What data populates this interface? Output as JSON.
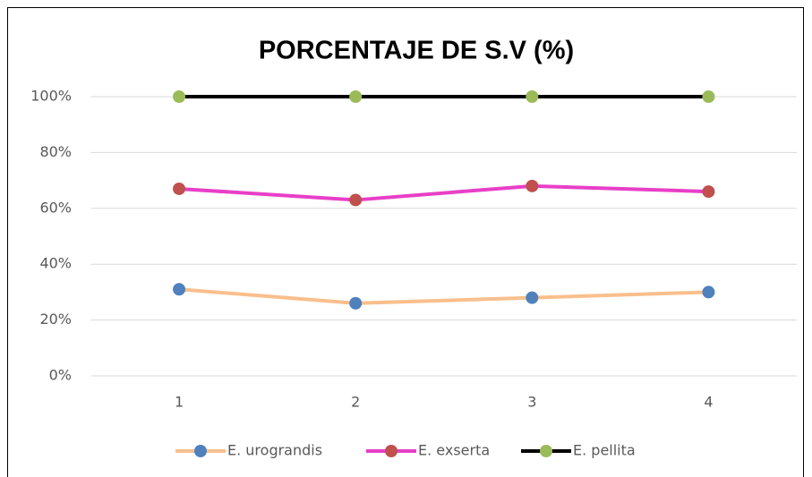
{
  "chart_data": {
    "type": "line",
    "title": "PORCENTAJE DE S.V (%)",
    "categories": [
      "1",
      "2",
      "3",
      "4"
    ],
    "series": [
      {
        "name": "E. urograndis",
        "color": "#f9bf8c",
        "marker_color": "#4f81bd",
        "values": [
          31,
          26,
          28,
          30
        ]
      },
      {
        "name": "E. exserta",
        "color": "#e83fc7",
        "marker_color": "#c0504d",
        "values": [
          67,
          63,
          68,
          66
        ]
      },
      {
        "name": "E. pellita",
        "color": "#000000",
        "marker_color": "#9bbb59",
        "values": [
          100,
          100,
          100,
          100
        ]
      }
    ],
    "ylim": [
      0,
      100
    ],
    "yticks": [
      {
        "value": 0,
        "label": "0%"
      },
      {
        "value": 20,
        "label": "20%"
      },
      {
        "value": 40,
        "label": "40%"
      },
      {
        "value": 60,
        "label": "60%"
      },
      {
        "value": 80,
        "label": "80%"
      },
      {
        "value": 100,
        "label": "100%"
      }
    ],
    "grid": true,
    "legend": "bottom"
  }
}
